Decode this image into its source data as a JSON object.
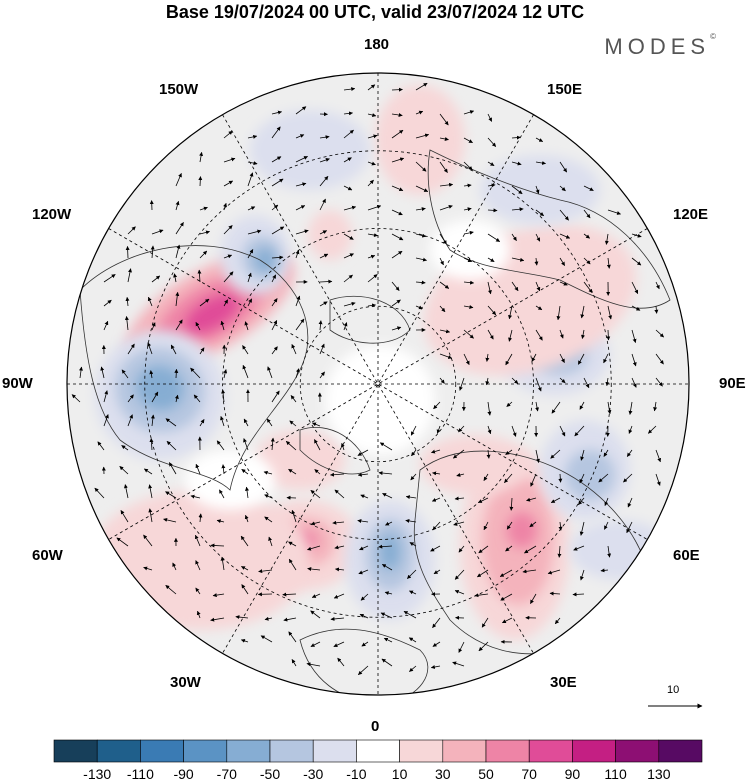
{
  "title": "Base 19/07/2024 00 UTC, valid 23/07/2024 12 UTC",
  "brand": "MODES",
  "brand_mark": "©",
  "longitude_labels": {
    "top": "180",
    "bottom": "0",
    "left": "90W",
    "right": "90E",
    "upper_left_1": "150W",
    "upper_left_2": "120W",
    "lower_left_1": "60W",
    "lower_left_2": "30W",
    "upper_right_1": "150E",
    "upper_right_2": "120E",
    "lower_right_1": "60E",
    "lower_right_2": "30E"
  },
  "reference_vector": "10",
  "colorbar": {
    "labels": [
      "-130",
      "-110",
      "-90",
      "-70",
      "-50",
      "-30",
      "-10",
      "10",
      "30",
      "50",
      "70",
      "90",
      "110",
      "130"
    ],
    "colors": [
      "#173f5a",
      "#1f5f8b",
      "#3a7bb4",
      "#5b93c4",
      "#86add3",
      "#b5c6e0",
      "#dcdfee",
      "#ffffff",
      "#f7d7d8",
      "#f4b3bc",
      "#ee84a6",
      "#e04c98",
      "#c41f83",
      "#8d0f73",
      "#570a63"
    ]
  }
}
